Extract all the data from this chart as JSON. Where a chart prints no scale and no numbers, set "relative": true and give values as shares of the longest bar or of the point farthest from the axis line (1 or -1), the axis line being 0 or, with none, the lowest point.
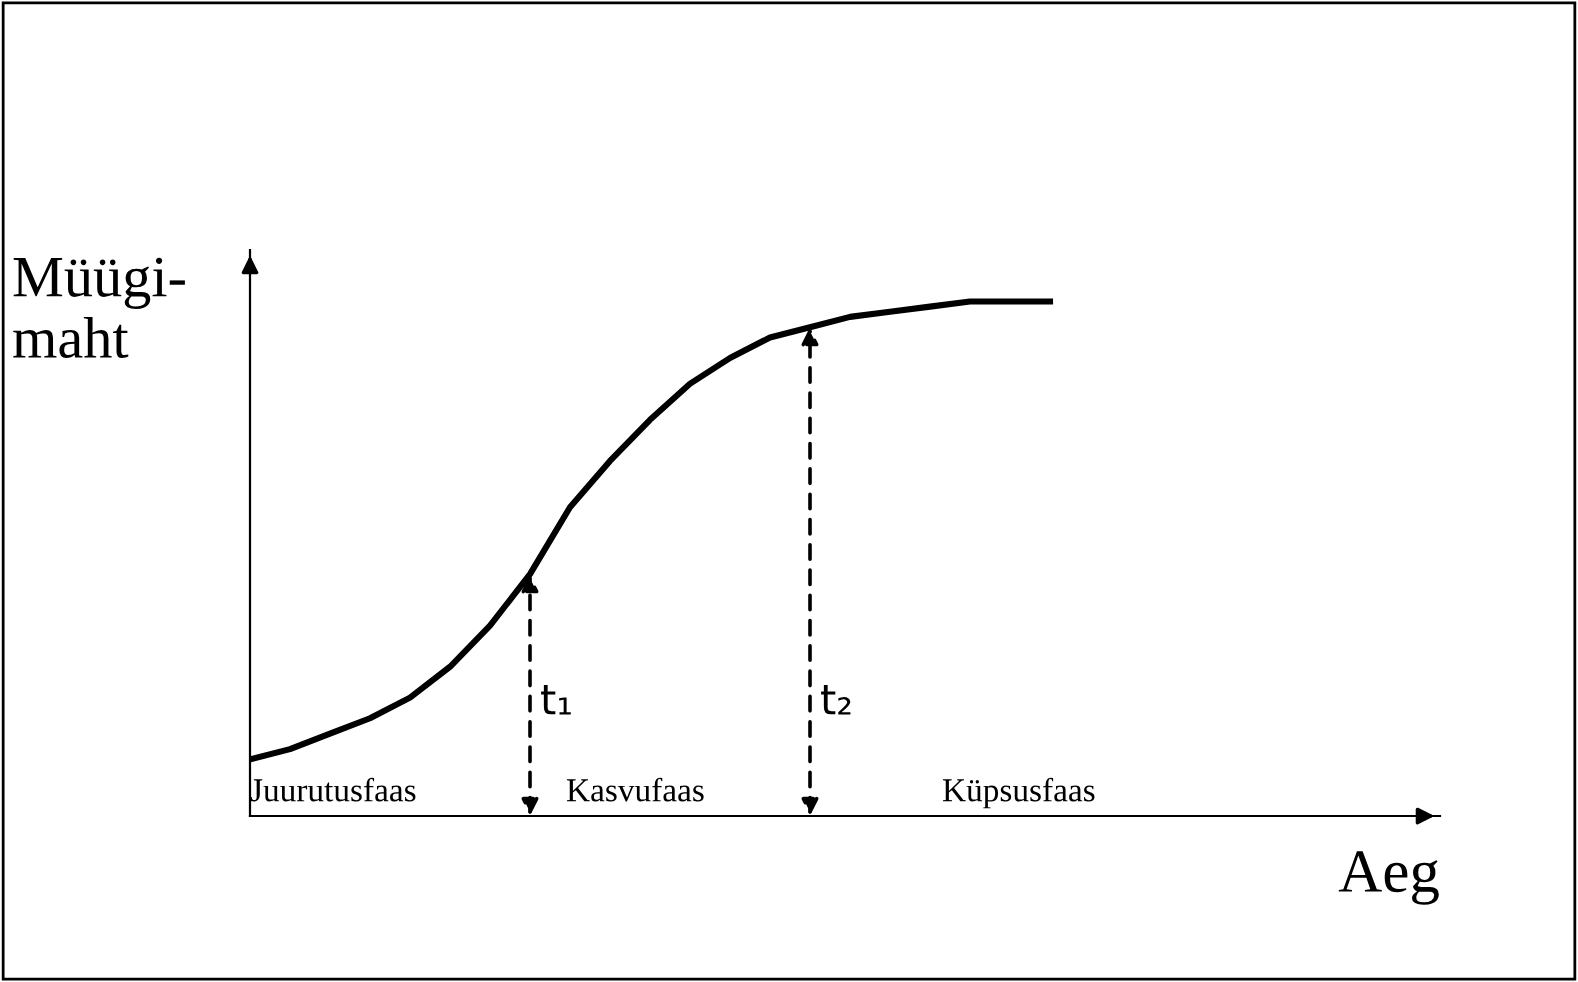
{
  "chart_data": {
    "type": "line",
    "relative": true,
    "xlabel": "Aeg",
    "ylabel": "Müügi-\nmaht",
    "categories": [
      null,
      null,
      null,
      null,
      null,
      null,
      null,
      null,
      null,
      null,
      null,
      null,
      null,
      null,
      null,
      null,
      null,
      null,
      null,
      null,
      null
    ],
    "series": [
      {
        "color": "#000000",
        "values": [
          0.11,
          0.13,
          0.16,
          0.19,
          0.23,
          0.29,
          0.37,
          0.47,
          0.6,
          0.69,
          0.77,
          0.84,
          0.89,
          0.93,
          0.95,
          0.97,
          0.98,
          0.99,
          1.0,
          1.0,
          1.0
        ]
      }
    ],
    "annotations": [
      "t₁",
      "t₂",
      "Juurutusfaas",
      "Kasvufaas",
      "Küpsusfaas"
    ],
    "marker": "none",
    "line_style": "solid",
    "legend": false
  }
}
